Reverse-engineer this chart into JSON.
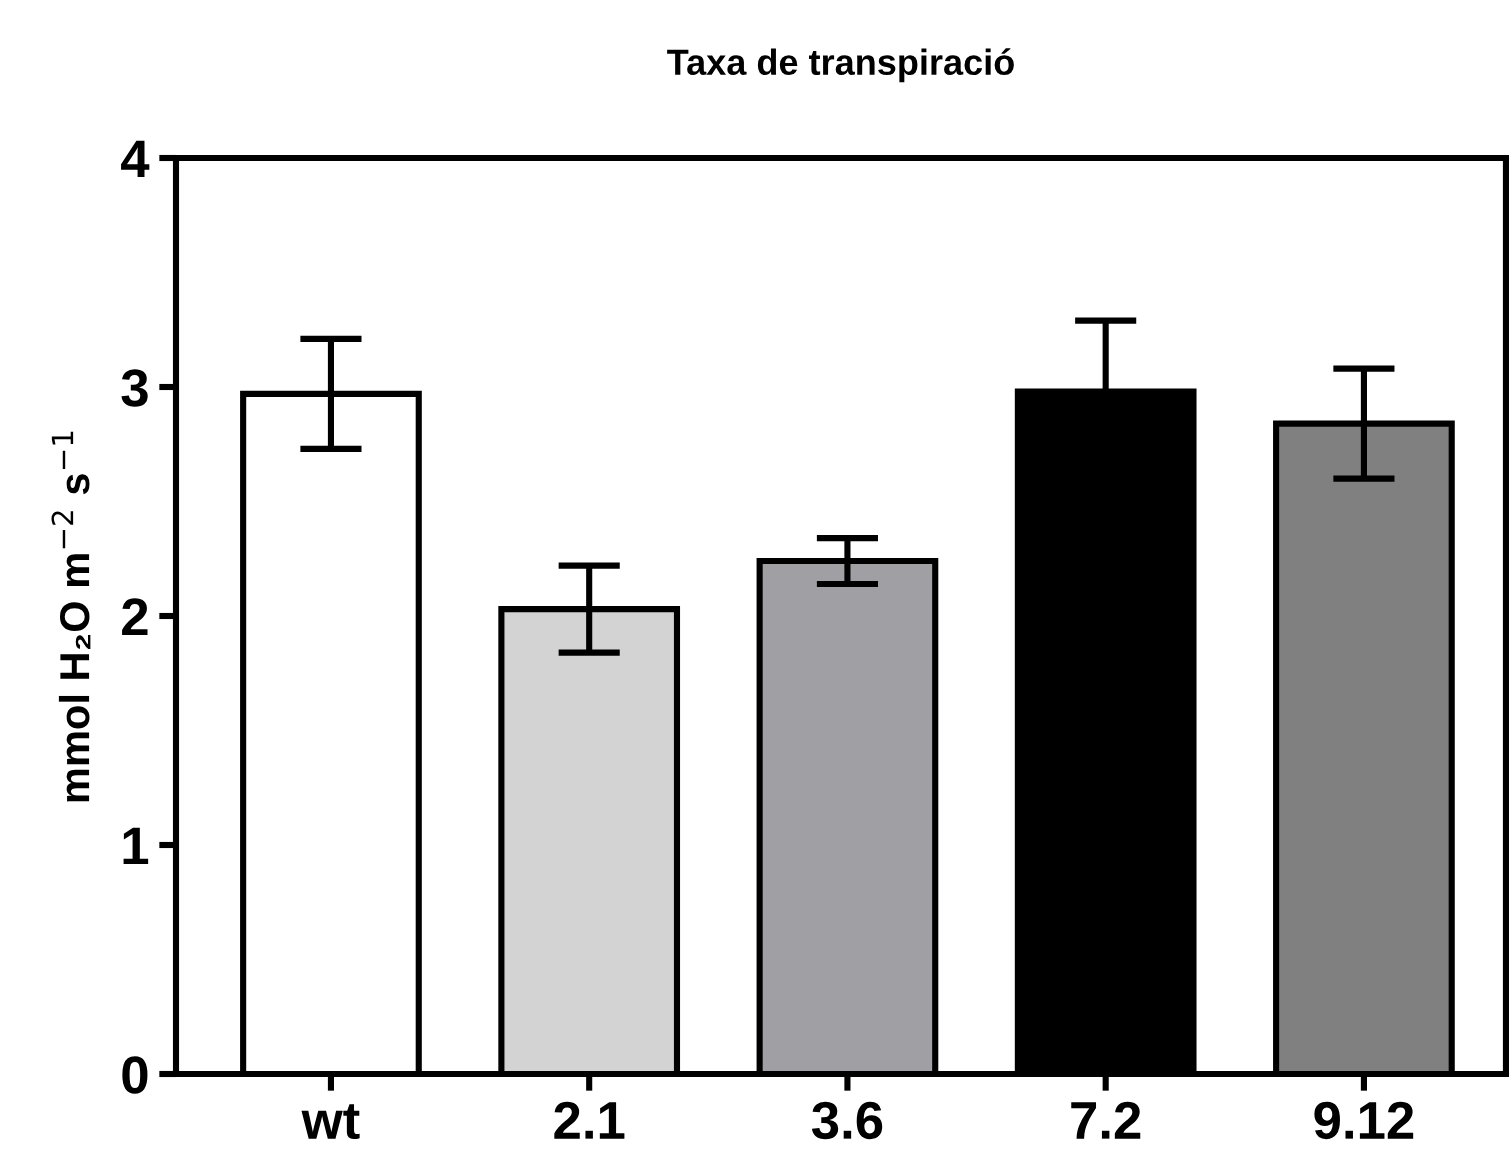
{
  "chart_data": {
    "type": "bar",
    "title": "Taxa de transpiració",
    "ylabel": "mmol H₂O m$^{−2}$ s$^{−1}$",
    "categories": [
      "wt",
      "2.1",
      "3.6",
      "7.2",
      "9.12"
    ],
    "values": [
      2.97,
      2.03,
      2.24,
      2.98,
      2.84
    ],
    "errors": [
      0.24,
      0.19,
      0.1,
      0.31,
      0.24
    ],
    "colors": [
      "#ffffff",
      "#d3d3d3",
      "#a0a0a4",
      "#000000",
      "#808080"
    ],
    "ylim": [
      0,
      4
    ],
    "yticks": [
      0,
      1,
      2,
      3,
      4
    ],
    "grid": false
  }
}
